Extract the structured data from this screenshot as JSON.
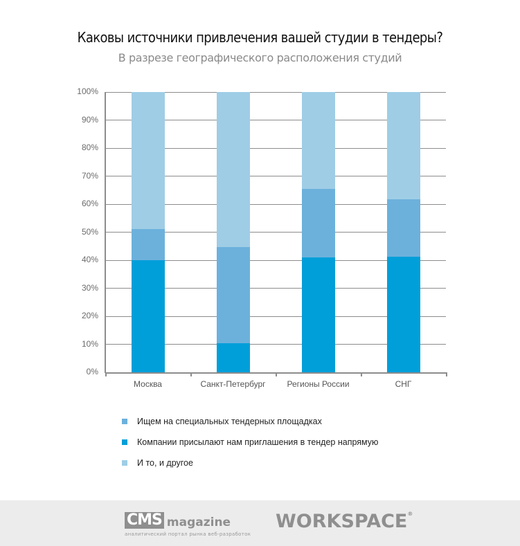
{
  "header": {
    "title": "Каковы источники привлечения вашей студии в тендеры?",
    "subtitle": "В разрезе географического расположения студий"
  },
  "colors": {
    "direct": "#009fd9",
    "platforms": "#6cb1dc",
    "both": "#9fcde6",
    "grid": "#8c8c8c"
  },
  "chart_data": {
    "type": "bar",
    "stacked": true,
    "title": "Каковы источники привлечения вашей студии в тендеры?",
    "subtitle": "В разрезе географического расположения студий",
    "xlabel": "",
    "ylabel": "",
    "ylim": [
      0,
      100
    ],
    "yticks": [
      "0%",
      "10%",
      "20%",
      "30%",
      "40%",
      "50%",
      "60%",
      "70%",
      "80%",
      "90%",
      "100%"
    ],
    "grid": true,
    "legend_position": "bottom",
    "categories": [
      "Москва",
      "Санкт-Петербург",
      "Регионы России",
      "СНГ"
    ],
    "series": [
      {
        "name": "Компании присылают нам приглашения в тендер напрямую",
        "color": "#009fd9",
        "values": [
          40.0,
          10.3,
          41.0,
          41.3
        ]
      },
      {
        "name": "Ищем на специальных тендерных площадках",
        "color": "#6cb1dc",
        "values": [
          11.2,
          34.4,
          24.4,
          20.5
        ]
      },
      {
        "name": "И то, и другое",
        "color": "#9fcde6",
        "values": [
          48.8,
          55.3,
          34.6,
          38.2
        ]
      }
    ]
  },
  "legend": {
    "items": [
      {
        "label": "Ищем на специальных тендерных площадках",
        "color": "#6cb1dc"
      },
      {
        "label": "Компании присылают нам приглашения в тендер напрямую",
        "color": "#009fd9"
      },
      {
        "label": "И то, и другое",
        "color": "#9fcde6"
      }
    ]
  },
  "footer": {
    "cms_logo": "CMS",
    "cms_logo_word": "magazine",
    "cms_tagline": "аналитический портал рынка веб-разработок",
    "workspace_logo": "WORKSPACE",
    "workspace_mark": "®"
  }
}
